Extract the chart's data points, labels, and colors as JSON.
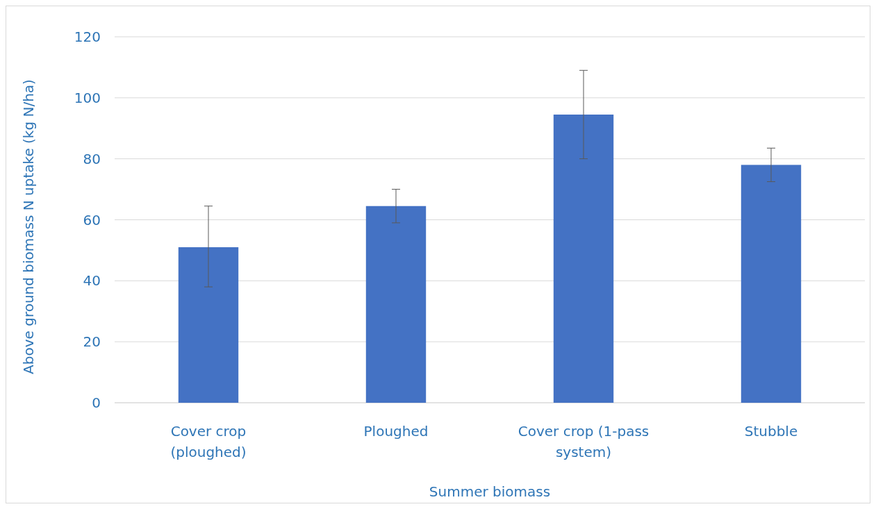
{
  "chart_data": {
    "type": "bar",
    "xlabel": "Summer biomass",
    "ylabel": "Above ground biomass N uptake (kg N/ha)",
    "categories": [
      "Cover crop (ploughed)",
      "Ploughed",
      "Cover crop (1-pass system)",
      "Stubble"
    ],
    "values": [
      51,
      64.5,
      94.5,
      78
    ],
    "errors": [
      [
        38,
        64.5
      ],
      [
        59,
        70
      ],
      [
        80,
        109
      ],
      [
        72.5,
        83.5
      ]
    ],
    "color": "#4472c4",
    "ylim": [
      0,
      120
    ],
    "yticks": [
      0,
      20,
      40,
      60,
      80,
      100,
      120
    ],
    "grid": "y"
  }
}
